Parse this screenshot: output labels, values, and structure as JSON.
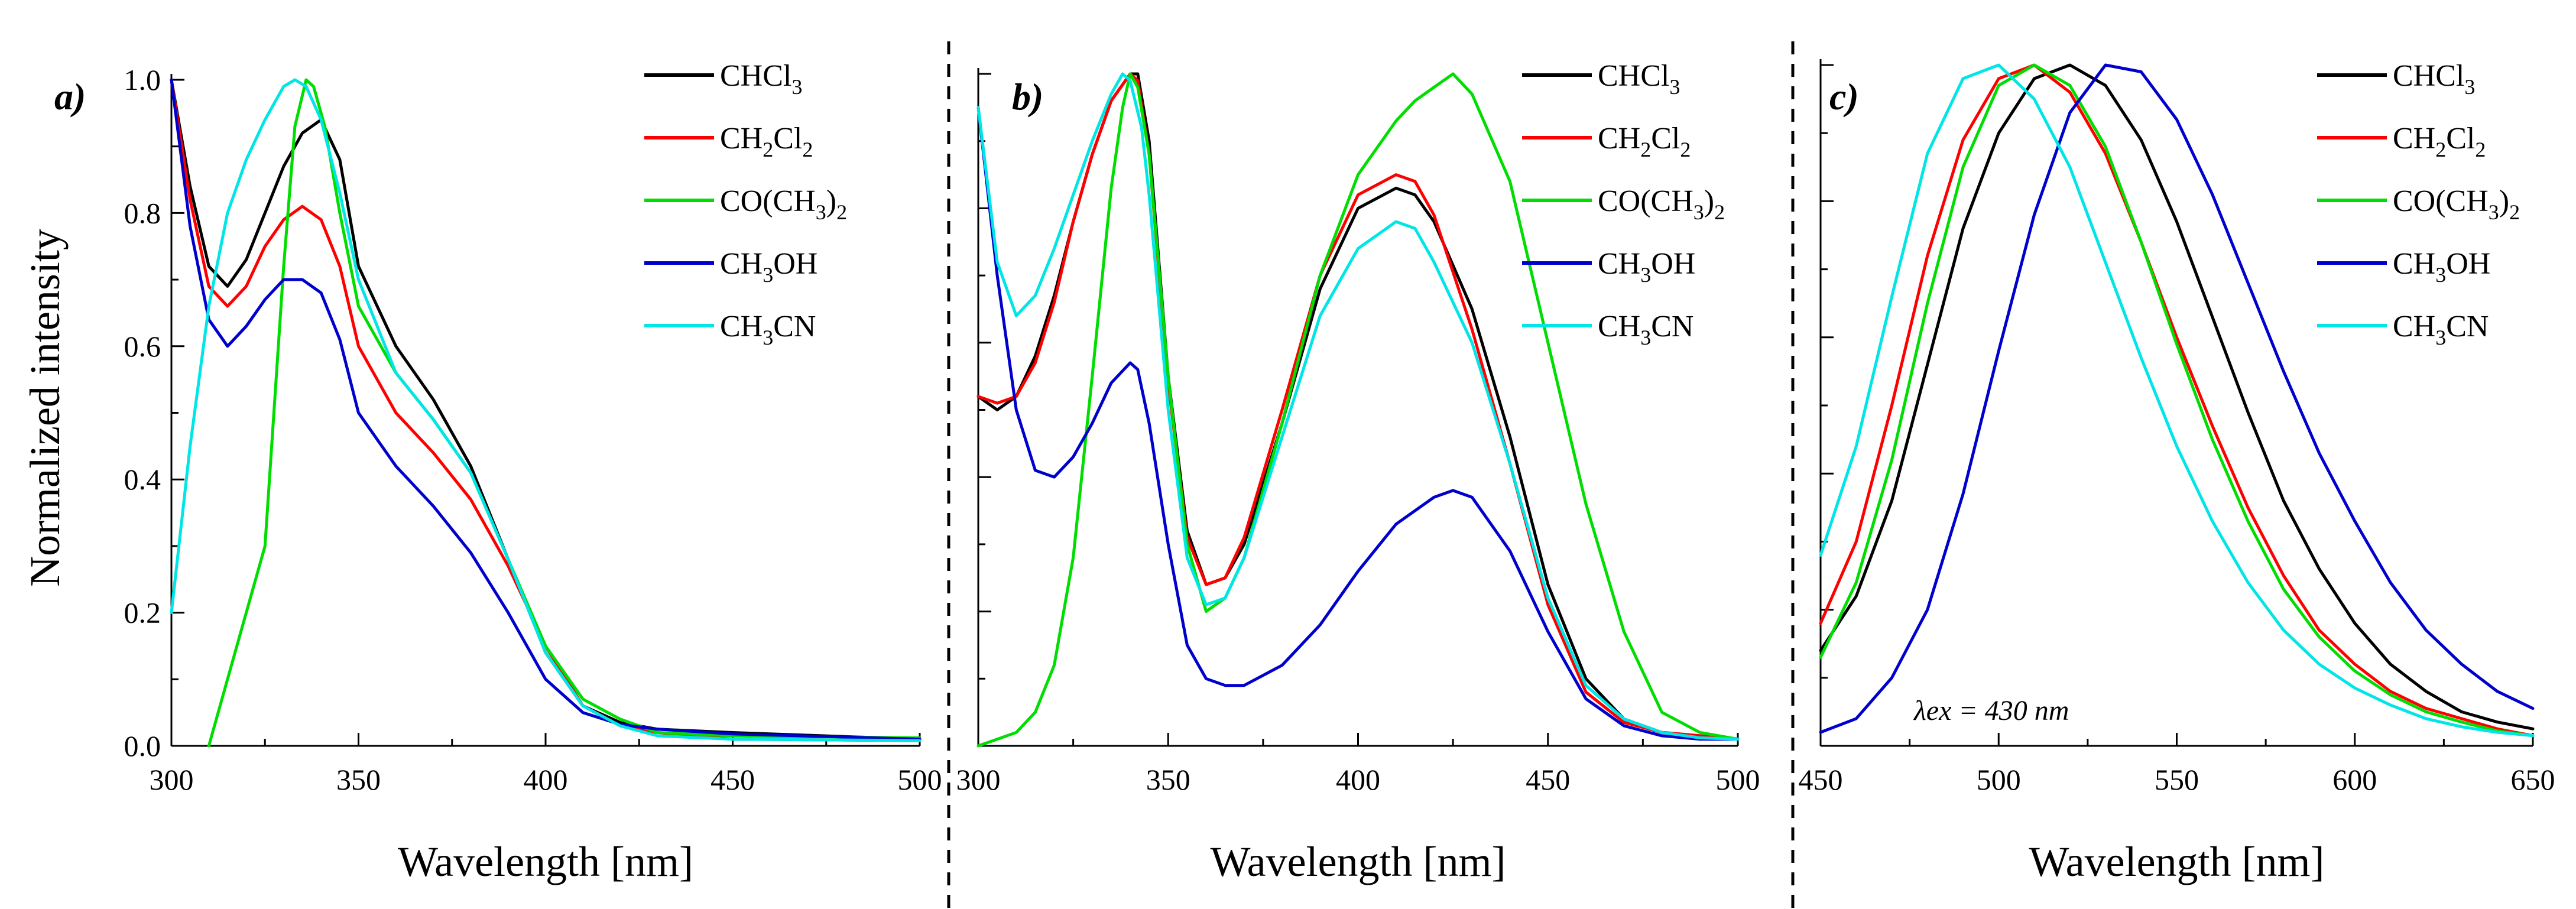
{
  "figure": {
    "ylabel": "Normalized intensity",
    "annotation": "λex = 430 nm"
  },
  "legend": [
    {
      "parts": [
        [
          "CHCl",
          ""
        ],
        [
          "3",
          "sub"
        ]
      ],
      "color": "#000000"
    },
    {
      "parts": [
        [
          "CH",
          ""
        ],
        [
          "2",
          "sub"
        ],
        [
          "Cl",
          ""
        ],
        [
          "2",
          "sub"
        ]
      ],
      "color": "#ff0000"
    },
    {
      "parts": [
        [
          "CO(CH",
          ""
        ],
        [
          "3",
          "sub"
        ],
        [
          ")",
          ""
        ],
        [
          "2",
          "sub"
        ]
      ],
      "color": "#00dd00"
    },
    {
      "parts": [
        [
          "CH",
          ""
        ],
        [
          "3",
          "sub"
        ],
        [
          "OH",
          ""
        ]
      ],
      "color": "#0000cc"
    },
    {
      "parts": [
        [
          "CH",
          ""
        ],
        [
          "3",
          "sub"
        ],
        [
          "CN",
          ""
        ]
      ],
      "color": "#00e5e5"
    }
  ],
  "chart_data": [
    {
      "panel": "a)",
      "type": "line",
      "xlabel": "Wavelength [nm]",
      "ylabel": "Normalized intensity",
      "xlim": [
        300,
        500
      ],
      "ylim": [
        0,
        1.0
      ],
      "xticks": [
        300,
        350,
        400,
        450,
        500
      ],
      "yticks": [
        0.0,
        0.2,
        0.4,
        0.6,
        0.8,
        1.0
      ],
      "ytick_labels": [
        "0.0",
        "0.2",
        "0.4",
        "0.6",
        "0.8",
        "1.0"
      ],
      "series": [
        {
          "name": "CHCl3",
          "color": "#000000",
          "x": [
            300,
            305,
            310,
            315,
            320,
            325,
            330,
            335,
            340,
            345,
            350,
            360,
            370,
            380,
            390,
            400,
            410,
            420,
            430,
            450,
            500
          ],
          "y": [
            1.0,
            0.84,
            0.72,
            0.69,
            0.73,
            0.8,
            0.87,
            0.92,
            0.94,
            0.88,
            0.72,
            0.6,
            0.52,
            0.42,
            0.28,
            0.14,
            0.06,
            0.035,
            0.025,
            0.02,
            0.01
          ]
        },
        {
          "name": "CH2Cl2",
          "color": "#ff0000",
          "x": [
            300,
            305,
            310,
            315,
            320,
            325,
            330,
            335,
            340,
            345,
            350,
            360,
            370,
            380,
            390,
            400,
            410,
            420,
            430,
            450,
            500
          ],
          "y": [
            1.0,
            0.82,
            0.69,
            0.66,
            0.69,
            0.75,
            0.79,
            0.81,
            0.79,
            0.72,
            0.6,
            0.5,
            0.44,
            0.37,
            0.27,
            0.15,
            0.06,
            0.03,
            0.02,
            0.01,
            0.008
          ]
        },
        {
          "name": "CO(CH3)2",
          "color": "#00dd00",
          "x": [
            310,
            315,
            320,
            325,
            330,
            333,
            336,
            338,
            341,
            345,
            350,
            360,
            370,
            380,
            390,
            400,
            410,
            420,
            430,
            450,
            500
          ],
          "y": [
            0.0,
            0.1,
            0.2,
            0.3,
            0.72,
            0.93,
            1.0,
            0.99,
            0.93,
            0.8,
            0.66,
            0.56,
            0.49,
            0.41,
            0.28,
            0.15,
            0.07,
            0.04,
            0.02,
            0.015,
            0.012
          ]
        },
        {
          "name": "CH3OH",
          "color": "#0000cc",
          "x": [
            300,
            305,
            310,
            315,
            320,
            325,
            330,
            335,
            340,
            345,
            350,
            360,
            370,
            380,
            390,
            400,
            410,
            420,
            430,
            450,
            500
          ],
          "y": [
            1.0,
            0.78,
            0.64,
            0.6,
            0.63,
            0.67,
            0.7,
            0.7,
            0.68,
            0.61,
            0.5,
            0.42,
            0.36,
            0.29,
            0.2,
            0.1,
            0.05,
            0.032,
            0.025,
            0.018,
            0.01
          ]
        },
        {
          "name": "CH3CN",
          "color": "#00e5e5",
          "x": [
            300,
            305,
            310,
            315,
            320,
            325,
            330,
            333,
            336,
            340,
            345,
            350,
            360,
            370,
            380,
            390,
            400,
            410,
            420,
            430,
            450,
            500
          ],
          "y": [
            0.2,
            0.45,
            0.66,
            0.8,
            0.88,
            0.94,
            0.99,
            1.0,
            0.99,
            0.94,
            0.83,
            0.7,
            0.56,
            0.49,
            0.41,
            0.28,
            0.14,
            0.06,
            0.03,
            0.015,
            0.01,
            0.008
          ]
        }
      ]
    },
    {
      "panel": "b)",
      "type": "line",
      "xlabel": "Wavelength [nm]",
      "xlim": [
        300,
        500
      ],
      "ylim": [
        0,
        1.0
      ],
      "xticks": [
        300,
        350,
        400,
        450,
        500
      ],
      "yticks": [
        0.0,
        0.2,
        0.4,
        0.6,
        0.8,
        1.0
      ],
      "series": [
        {
          "name": "CHCl3",
          "color": "#000000",
          "x": [
            300,
            305,
            310,
            315,
            320,
            325,
            330,
            335,
            340,
            342,
            345,
            350,
            355,
            360,
            365,
            370,
            380,
            390,
            400,
            410,
            415,
            420,
            430,
            440,
            450,
            460,
            470,
            480,
            490,
            500
          ],
          "y": [
            0.52,
            0.5,
            0.52,
            0.58,
            0.67,
            0.78,
            0.88,
            0.96,
            1.0,
            1.0,
            0.9,
            0.55,
            0.32,
            0.24,
            0.25,
            0.3,
            0.48,
            0.68,
            0.8,
            0.83,
            0.82,
            0.78,
            0.65,
            0.46,
            0.24,
            0.1,
            0.04,
            0.02,
            0.015,
            0.01
          ]
        },
        {
          "name": "CH2Cl2",
          "color": "#ff0000",
          "x": [
            300,
            305,
            310,
            315,
            320,
            325,
            330,
            335,
            340,
            342,
            345,
            350,
            355,
            360,
            365,
            370,
            380,
            390,
            400,
            410,
            415,
            420,
            430,
            440,
            450,
            460,
            470,
            480,
            490,
            500
          ],
          "y": [
            0.52,
            0.51,
            0.52,
            0.57,
            0.66,
            0.78,
            0.88,
            0.96,
            1.0,
            0.99,
            0.88,
            0.54,
            0.31,
            0.24,
            0.25,
            0.31,
            0.5,
            0.7,
            0.82,
            0.85,
            0.84,
            0.79,
            0.62,
            0.42,
            0.21,
            0.08,
            0.035,
            0.02,
            0.015,
            0.01
          ]
        },
        {
          "name": "CO(CH3)2",
          "color": "#00dd00",
          "x": [
            300,
            310,
            315,
            320,
            325,
            330,
            335,
            338,
            340,
            342,
            345,
            350,
            355,
            360,
            365,
            370,
            380,
            390,
            400,
            410,
            415,
            420,
            425,
            430,
            440,
            450,
            460,
            470,
            480,
            490,
            500
          ],
          "y": [
            0.0,
            0.02,
            0.05,
            0.12,
            0.28,
            0.55,
            0.83,
            0.95,
            1.0,
            0.98,
            0.88,
            0.55,
            0.3,
            0.2,
            0.22,
            0.28,
            0.48,
            0.7,
            0.85,
            0.93,
            0.96,
            0.98,
            1.0,
            0.97,
            0.84,
            0.6,
            0.36,
            0.17,
            0.05,
            0.02,
            0.01
          ]
        },
        {
          "name": "CH3OH",
          "color": "#0000cc",
          "x": [
            300,
            305,
            310,
            315,
            320,
            325,
            330,
            335,
            340,
            342,
            345,
            350,
            355,
            360,
            365,
            370,
            380,
            390,
            400,
            410,
            420,
            425,
            430,
            440,
            450,
            460,
            470,
            480,
            490,
            500
          ],
          "y": [
            0.95,
            0.7,
            0.5,
            0.41,
            0.4,
            0.43,
            0.48,
            0.54,
            0.57,
            0.56,
            0.48,
            0.3,
            0.15,
            0.1,
            0.09,
            0.09,
            0.12,
            0.18,
            0.26,
            0.33,
            0.37,
            0.38,
            0.37,
            0.29,
            0.17,
            0.07,
            0.03,
            0.015,
            0.01,
            0.01
          ]
        },
        {
          "name": "CH3CN",
          "color": "#00e5e5",
          "x": [
            300,
            305,
            310,
            315,
            320,
            325,
            330,
            335,
            338,
            340,
            343,
            345,
            350,
            355,
            360,
            365,
            370,
            380,
            390,
            400,
            410,
            415,
            420,
            430,
            440,
            450,
            460,
            470,
            480,
            490,
            500
          ],
          "y": [
            0.95,
            0.72,
            0.64,
            0.67,
            0.74,
            0.82,
            0.9,
            0.97,
            1.0,
            0.99,
            0.92,
            0.82,
            0.5,
            0.28,
            0.21,
            0.22,
            0.28,
            0.46,
            0.64,
            0.74,
            0.78,
            0.77,
            0.72,
            0.6,
            0.42,
            0.22,
            0.09,
            0.04,
            0.02,
            0.012,
            0.01
          ]
        }
      ]
    },
    {
      "panel": "c)",
      "type": "line",
      "xlabel": "Wavelength [nm]",
      "xlim": [
        450,
        650
      ],
      "ylim": [
        0,
        1.0
      ],
      "xticks": [
        450,
        500,
        550,
        600,
        650
      ],
      "yticks": [
        0.0,
        0.2,
        0.4,
        0.6,
        0.8,
        1.0
      ],
      "annotation": "λex = 430 nm",
      "series": [
        {
          "name": "CHCl3",
          "color": "#000000",
          "x": [
            450,
            460,
            470,
            480,
            490,
            500,
            510,
            520,
            530,
            540,
            550,
            560,
            570,
            580,
            590,
            600,
            610,
            620,
            630,
            640,
            650
          ],
          "y": [
            0.14,
            0.22,
            0.36,
            0.56,
            0.76,
            0.9,
            0.98,
            1.0,
            0.97,
            0.89,
            0.77,
            0.63,
            0.49,
            0.36,
            0.26,
            0.18,
            0.12,
            0.08,
            0.05,
            0.035,
            0.025
          ]
        },
        {
          "name": "CH2Cl2",
          "color": "#ff0000",
          "x": [
            450,
            460,
            470,
            480,
            490,
            500,
            510,
            520,
            530,
            540,
            550,
            560,
            570,
            580,
            590,
            600,
            610,
            620,
            630,
            640,
            650
          ],
          "y": [
            0.18,
            0.3,
            0.5,
            0.72,
            0.89,
            0.98,
            1.0,
            0.96,
            0.87,
            0.74,
            0.6,
            0.47,
            0.35,
            0.25,
            0.17,
            0.12,
            0.08,
            0.055,
            0.04,
            0.025,
            0.015
          ]
        },
        {
          "name": "CO(CH3)2",
          "color": "#00dd00",
          "x": [
            450,
            460,
            470,
            480,
            490,
            500,
            510,
            520,
            530,
            540,
            550,
            560,
            570,
            580,
            590,
            600,
            610,
            620,
            630,
            640,
            650
          ],
          "y": [
            0.13,
            0.24,
            0.42,
            0.65,
            0.85,
            0.97,
            1.0,
            0.97,
            0.88,
            0.74,
            0.59,
            0.45,
            0.33,
            0.23,
            0.16,
            0.11,
            0.075,
            0.05,
            0.035,
            0.022,
            0.015
          ]
        },
        {
          "name": "CH3OH",
          "color": "#0000cc",
          "x": [
            450,
            460,
            470,
            480,
            490,
            500,
            510,
            520,
            530,
            540,
            550,
            560,
            570,
            580,
            590,
            600,
            610,
            620,
            630,
            640,
            650
          ],
          "y": [
            0.02,
            0.04,
            0.1,
            0.2,
            0.37,
            0.58,
            0.78,
            0.93,
            1.0,
            0.99,
            0.92,
            0.81,
            0.68,
            0.55,
            0.43,
            0.33,
            0.24,
            0.17,
            0.12,
            0.08,
            0.055
          ]
        },
        {
          "name": "CH3CN",
          "color": "#00e5e5",
          "x": [
            450,
            460,
            470,
            480,
            490,
            500,
            510,
            520,
            530,
            540,
            550,
            560,
            570,
            580,
            590,
            600,
            610,
            620,
            630,
            640,
            650
          ],
          "y": [
            0.28,
            0.44,
            0.66,
            0.87,
            0.98,
            1.0,
            0.95,
            0.85,
            0.71,
            0.57,
            0.44,
            0.33,
            0.24,
            0.17,
            0.12,
            0.085,
            0.06,
            0.04,
            0.028,
            0.02,
            0.015
          ]
        }
      ]
    }
  ]
}
